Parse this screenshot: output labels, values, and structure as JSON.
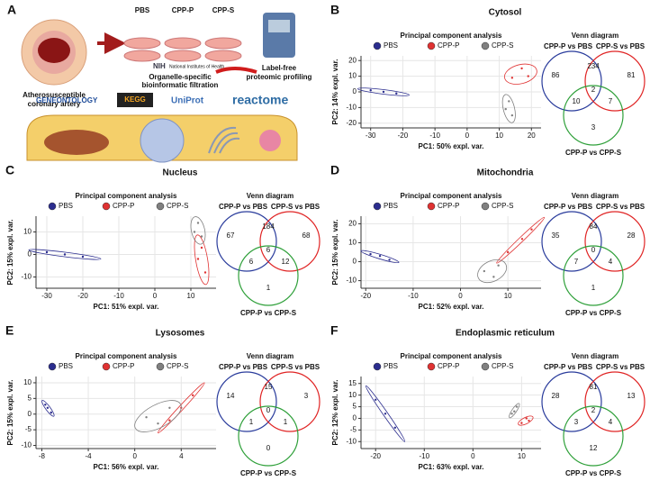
{
  "panel_a": {
    "label": "A",
    "treatments": [
      "PBS",
      "CPP-P",
      "CPP-S"
    ],
    "artery_label": [
      "Atherosusceptible",
      "coronary artery"
    ],
    "proteomics_label": [
      "Label-free",
      "proteomic profiling"
    ],
    "filtration_label": [
      "Organelle-specific",
      "bioinformatic filtration"
    ],
    "nih": [
      "NIH",
      "National Institutes of Health"
    ],
    "databases": [
      "GENEONTOLOGY",
      "KEGG",
      "UniProt",
      "reactome"
    ]
  },
  "chart_data": [
    {
      "type": "scatter",
      "panel_label": "B",
      "panel_title": "Cytosol",
      "title": "Principal component analysis",
      "x_label": "PC1: 50% expl. var.",
      "y_label": "PC2: 14% expl. var.",
      "xlim": [
        -33,
        23
      ],
      "ylim": [
        -23,
        23
      ],
      "xticks": [
        -30,
        -20,
        -10,
        0,
        10,
        20
      ],
      "yticks": [
        -20,
        -10,
        0,
        10,
        20
      ],
      "grid": true,
      "series": [
        {
          "name": "PBS",
          "color": "#2b2d8e",
          "x": [
            -30,
            -26,
            -22
          ],
          "y": [
            1,
            0,
            -1
          ]
        },
        {
          "name": "CPP-P",
          "color": "#e03232",
          "x": [
            14,
            17,
            19
          ],
          "y": [
            9,
            15,
            10
          ]
        },
        {
          "name": "CPP-S",
          "color": "#808080",
          "x": [
            12,
            13,
            14
          ],
          "y": [
            -11,
            -6,
            -15
          ]
        }
      ]
    },
    {
      "type": "venn",
      "title": "Venn diagram",
      "sets": [
        "CPP-P vs PBS",
        "CPP-S vs PBS",
        "CPP-P vs CPP-S"
      ],
      "set_colors": [
        "#2a3c9c",
        "#e02424",
        "#2fa03a"
      ],
      "values": [
        86,
        234,
        81,
        10,
        2,
        7,
        3
      ]
    },
    {
      "type": "scatter",
      "panel_label": "C",
      "panel_title": "Nucleus",
      "title": "Principal component analysis",
      "x_label": "PC1: 51% expl. var.",
      "y_label": "PC2: 15% expl. var.",
      "xlim": [
        -33,
        17
      ],
      "ylim": [
        -15,
        17
      ],
      "xticks": [
        -30,
        -20,
        -10,
        0,
        10
      ],
      "yticks": [
        -10,
        0,
        10
      ],
      "grid": true,
      "series": [
        {
          "name": "PBS",
          "color": "#2b2d8e",
          "x": [
            -30,
            -25,
            -20
          ],
          "y": [
            1,
            0,
            -1
          ]
        },
        {
          "name": "CPP-P",
          "color": "#e03232",
          "x": [
            12,
            13,
            14
          ],
          "y": [
            -2,
            3,
            -8
          ]
        },
        {
          "name": "CPP-S",
          "color": "#808080",
          "x": [
            11,
            12,
            13
          ],
          "y": [
            10,
            14,
            8
          ]
        }
      ]
    },
    {
      "type": "venn",
      "title": "Venn diagram",
      "sets": [
        "CPP-P vs PBS",
        "CPP-S vs PBS",
        "CPP-P vs CPP-S"
      ],
      "set_colors": [
        "#2a3c9c",
        "#e02424",
        "#2fa03a"
      ],
      "values": [
        67,
        184,
        68,
        6,
        6,
        12,
        1
      ]
    },
    {
      "type": "scatter",
      "panel_label": "D",
      "panel_title": "Mitochondria",
      "title": "Principal component analysis",
      "x_label": "PC1: 52% expl. var.",
      "y_label": "PC2: 15% expl. var.",
      "xlim": [
        -21,
        17
      ],
      "ylim": [
        -14,
        24
      ],
      "xticks": [
        -20,
        -10,
        0,
        10
      ],
      "yticks": [
        -10,
        0,
        10,
        20
      ],
      "grid": true,
      "series": [
        {
          "name": "PBS",
          "color": "#2b2d8e",
          "x": [
            -19,
            -17,
            -15
          ],
          "y": [
            4,
            3,
            1
          ]
        },
        {
          "name": "CPP-P",
          "color": "#e03232",
          "x": [
            10,
            13,
            15
          ],
          "y": [
            5,
            12,
            17
          ]
        },
        {
          "name": "CPP-S",
          "color": "#808080",
          "x": [
            5,
            7,
            8
          ],
          "y": [
            -5,
            -8,
            -2
          ]
        }
      ]
    },
    {
      "type": "venn",
      "title": "Venn diagram",
      "sets": [
        "CPP-P vs PBS",
        "CPP-S vs PBS",
        "CPP-P vs CPP-S"
      ],
      "set_colors": [
        "#2a3c9c",
        "#e02424",
        "#2fa03a"
      ],
      "values": [
        35,
        84,
        28,
        7,
        0,
        4,
        1
      ]
    },
    {
      "type": "scatter",
      "panel_label": "E",
      "panel_title": "Lysosomes",
      "title": "Principal component analysis",
      "x_label": "PC1: 56% expl. var.",
      "y_label": "PC2: 15% expl. var.",
      "xlim": [
        -8.5,
        7
      ],
      "ylim": [
        -11,
        12
      ],
      "xticks": [
        -8,
        -4,
        0,
        4
      ],
      "yticks": [
        -10,
        -5,
        0,
        5,
        10
      ],
      "grid": true,
      "series": [
        {
          "name": "PBS",
          "color": "#2b2d8e",
          "x": [
            -7.7,
            -7.5,
            -7.2
          ],
          "y": [
            3,
            2,
            0.5
          ]
        },
        {
          "name": "CPP-P",
          "color": "#e03232",
          "x": [
            3,
            4,
            5
          ],
          "y": [
            -2,
            2,
            6
          ]
        },
        {
          "name": "CPP-S",
          "color": "#808080",
          "x": [
            1,
            2,
            3
          ],
          "y": [
            -1,
            -3,
            2
          ]
        }
      ]
    },
    {
      "type": "venn",
      "title": "Venn diagram",
      "sets": [
        "CPP-P vs PBS",
        "CPP-S vs PBS",
        "CPP-P vs CPP-S"
      ],
      "set_colors": [
        "#2a3c9c",
        "#e02424",
        "#2fa03a"
      ],
      "values": [
        14,
        15,
        3,
        1,
        0,
        1,
        0
      ]
    },
    {
      "type": "scatter",
      "panel_label": "F",
      "panel_title": "Endoplasmic reticulum",
      "title": "Principal component analysis",
      "x_label": "PC1: 63% expl. var.",
      "y_label": "PC2: 12% expl. var.",
      "xlim": [
        -23,
        14
      ],
      "ylim": [
        -13,
        18
      ],
      "xticks": [
        -20,
        -10,
        0,
        10
      ],
      "yticks": [
        -10,
        -5,
        0,
        5,
        10,
        15
      ],
      "grid": true,
      "series": [
        {
          "name": "PBS",
          "color": "#2b2d8e",
          "x": [
            -20,
            -18,
            -16
          ],
          "y": [
            8,
            2,
            -4
          ]
        },
        {
          "name": "CPP-P",
          "color": "#e03232",
          "x": [
            10,
            11,
            11.5
          ],
          "y": [
            -2,
            0,
            -1
          ]
        },
        {
          "name": "CPP-S",
          "color": "#808080",
          "x": [
            8,
            8.5,
            9
          ],
          "y": [
            2,
            3,
            5
          ]
        }
      ]
    },
    {
      "type": "venn",
      "title": "Venn diagram",
      "sets": [
        "CPP-P vs PBS",
        "CPP-S vs PBS",
        "CPP-P vs CPP-S"
      ],
      "set_colors": [
        "#2a3c9c",
        "#e02424",
        "#2fa03a"
      ],
      "values": [
        28,
        81,
        13,
        3,
        2,
        4,
        12
      ]
    }
  ]
}
